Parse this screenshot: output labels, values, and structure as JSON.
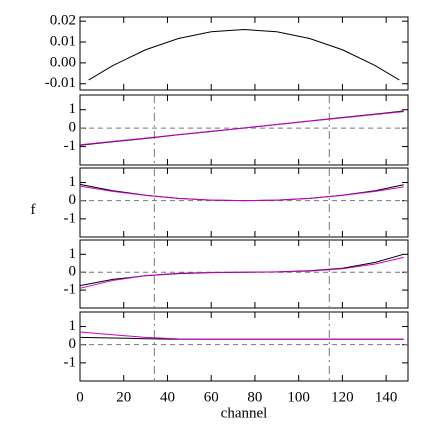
{
  "chart_data": [
    {
      "type": "line",
      "x": [
        4,
        15,
        30,
        45,
        60,
        75,
        90,
        105,
        120,
        135,
        146
      ],
      "xlim": [
        0,
        150
      ],
      "ylim": [
        -0.013,
        0.022
      ],
      "yticks": [
        0.02,
        0.01,
        {
          "value": 0,
          "label": "0.00"
        },
        -0.01
      ],
      "series": [
        {
          "color": "#000000",
          "values": [
            -0.0082,
            -0.0013,
            0.0063,
            0.0117,
            0.0149,
            0.016,
            0.0149,
            0.0117,
            0.0063,
            -0.0013,
            -0.0082
          ]
        }
      ]
    },
    {
      "type": "line",
      "x": [
        0,
        15,
        30,
        45,
        60,
        75,
        90,
        105,
        120,
        135,
        148
      ],
      "xlim": [
        0,
        150
      ],
      "ylim": [
        -2,
        1.8
      ],
      "yticks": [
        1,
        0,
        -1
      ],
      "vlines": [
        34,
        114
      ],
      "hlines": [
        0
      ],
      "series": [
        {
          "color": "#000000",
          "values": [
            -0.93,
            -0.74,
            -0.56,
            -0.36,
            -0.18,
            0.01,
            0.2,
            0.39,
            0.58,
            0.76,
            0.93
          ]
        },
        {
          "color": "#cc00cc",
          "values": [
            -0.9,
            -0.72,
            -0.54,
            -0.35,
            -0.17,
            0.01,
            0.19,
            0.38,
            0.56,
            0.74,
            0.9
          ]
        }
      ]
    },
    {
      "type": "line",
      "x": [
        0,
        15,
        30,
        45,
        60,
        75,
        90,
        105,
        120,
        135,
        148
      ],
      "xlim": [
        0,
        150
      ],
      "ylim": [
        -2,
        1.8
      ],
      "yticks": [
        1,
        0,
        -1
      ],
      "vlines": [
        34,
        114
      ],
      "hlines": [
        0
      ],
      "ylabel": "f",
      "series": [
        {
          "color": "#000000",
          "values": [
            0.9,
            0.55,
            0.3,
            0.13,
            0.03,
            0,
            0.03,
            0.13,
            0.3,
            0.55,
            0.88
          ]
        },
        {
          "color": "#cc00cc",
          "values": [
            0.8,
            0.51,
            0.29,
            0.13,
            0.03,
            0,
            0.03,
            0.13,
            0.29,
            0.51,
            0.76
          ]
        }
      ]
    },
    {
      "type": "line",
      "x": [
        0,
        15,
        30,
        45,
        60,
        75,
        90,
        105,
        120,
        135,
        148
      ],
      "xlim": [
        0,
        150
      ],
      "ylim": [
        -2,
        1.8
      ],
      "yticks": [
        1,
        0,
        -1
      ],
      "vlines": [
        34,
        114
      ],
      "hlines": [
        0
      ],
      "series": [
        {
          "color": "#000000",
          "values": [
            -0.75,
            -0.4,
            -0.2,
            -0.08,
            -0.02,
            0,
            0.02,
            0.08,
            0.22,
            0.55,
            1.0
          ]
        },
        {
          "color": "#cc00cc",
          "values": [
            -0.9,
            -0.46,
            -0.19,
            -0.06,
            -0.01,
            0,
            0.01,
            0.06,
            0.19,
            0.46,
            0.83
          ]
        }
      ]
    },
    {
      "type": "line",
      "x": [
        0,
        15,
        30,
        45,
        60,
        75,
        90,
        105,
        120,
        135,
        148
      ],
      "xlim": [
        0,
        150
      ],
      "ylim": [
        -2,
        1.8
      ],
      "yticks": [
        1,
        0,
        -1
      ],
      "vlines": [
        34,
        114
      ],
      "hlines": [
        0
      ],
      "xticks": [
        0,
        20,
        40,
        60,
        80,
        100,
        120,
        140
      ],
      "xlabel": "channel",
      "series": [
        {
          "color": "#000000",
          "values": [
            0.4,
            0.37,
            0.33,
            0.3,
            0.3,
            0.3,
            0.3,
            0.3,
            0.3,
            0.3,
            0.3
          ]
        },
        {
          "color": "#cc00cc",
          "values": [
            0.7,
            0.55,
            0.4,
            0.32,
            0.3,
            0.3,
            0.3,
            0.3,
            0.3,
            0.3,
            0.3
          ]
        }
      ]
    }
  ]
}
